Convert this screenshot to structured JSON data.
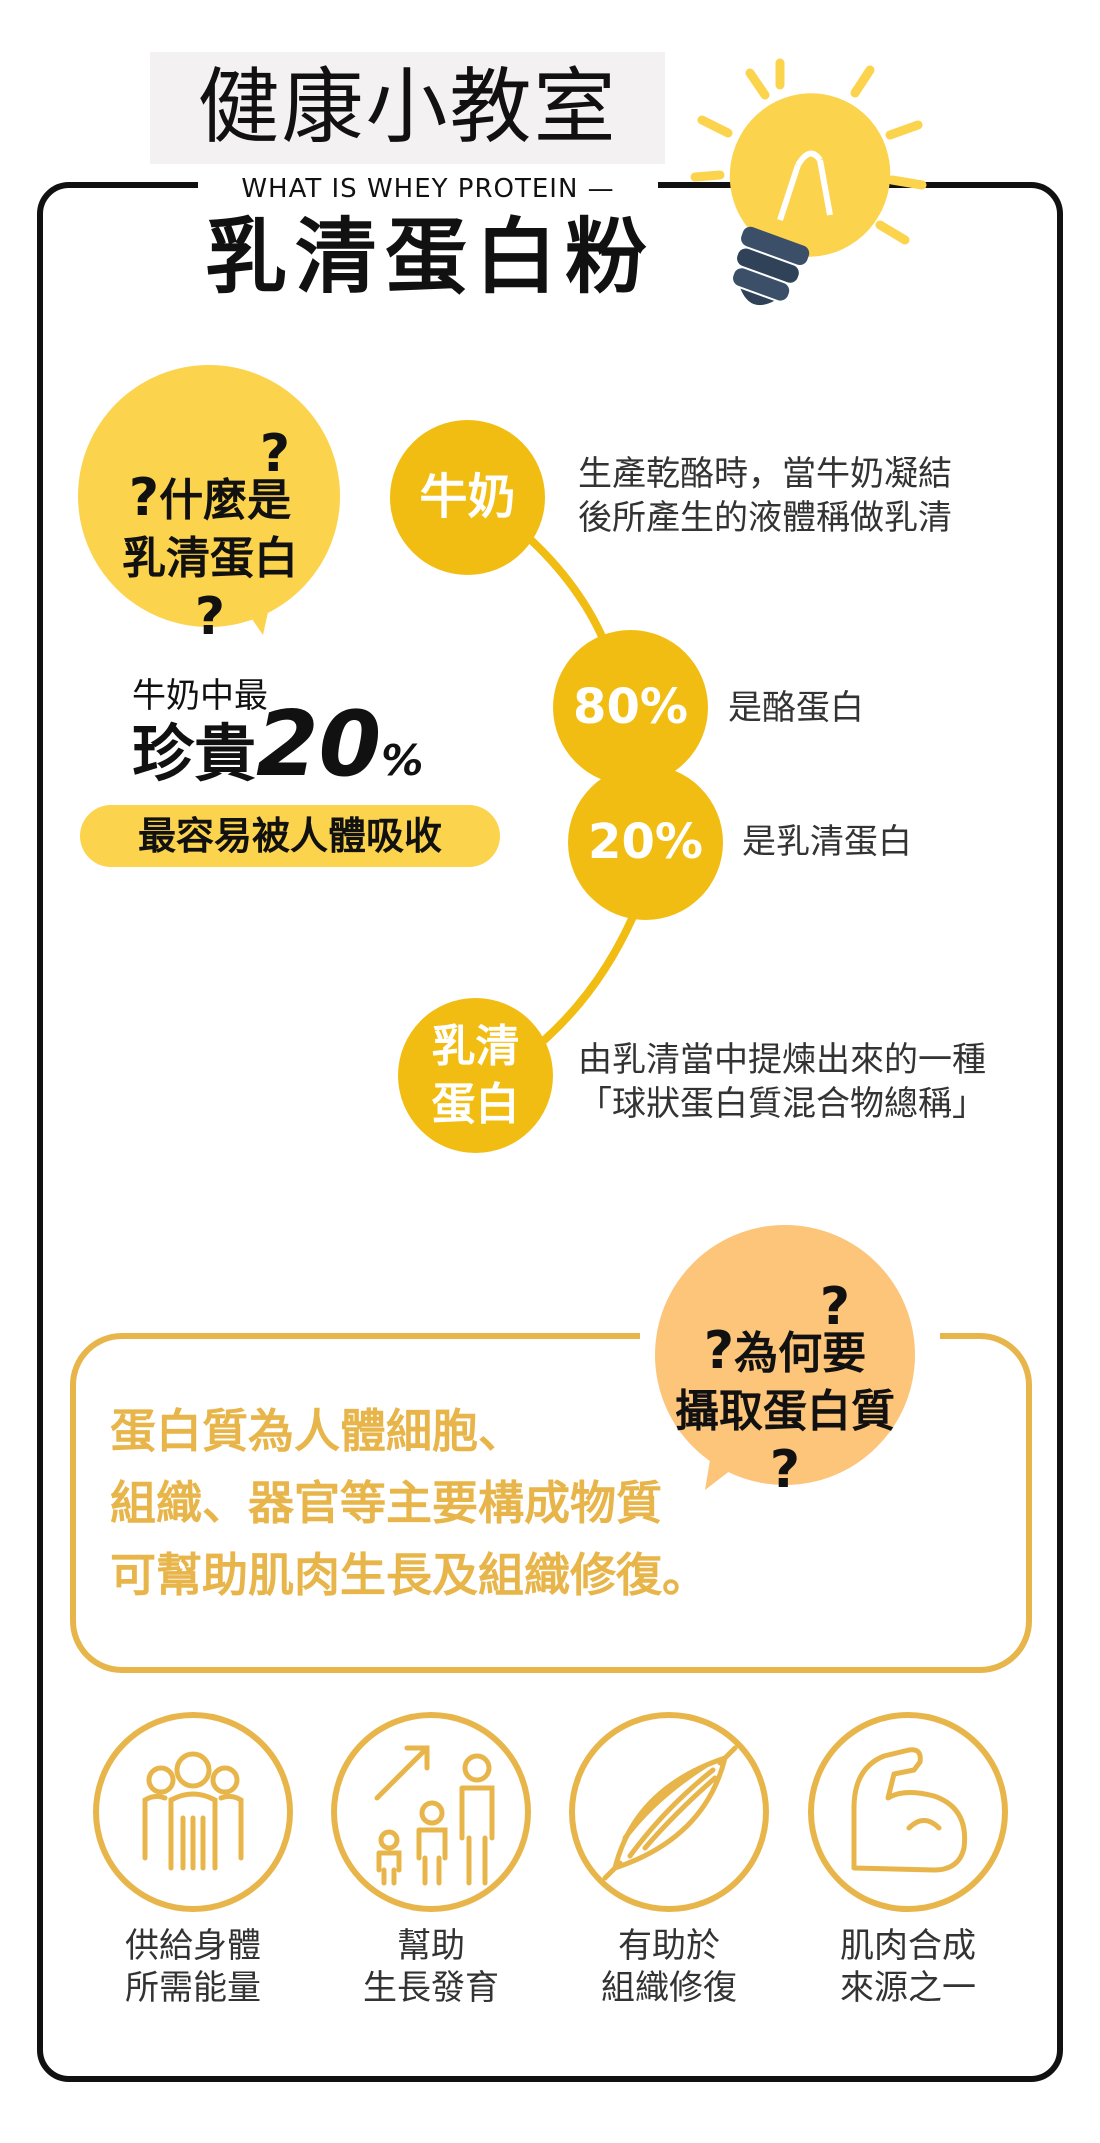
{
  "header": {
    "title": "健康小教室",
    "subtitle": "WHAT IS WHEY PROTEIN",
    "main_title": "乳清蛋白粉"
  },
  "question1": {
    "line1": "什麼是",
    "line2": "乳清蛋白",
    "mark": "?"
  },
  "highlight": {
    "top": "牛奶中最",
    "precious": "珍貴",
    "number": "20",
    "percent": "%",
    "pill": "最容易被人體吸收"
  },
  "nodes": {
    "milk": {
      "label": "牛奶",
      "desc_line1": "生產乾酪時，當牛奶凝結",
      "desc_line2": "後所產生的液體稱做乳清"
    },
    "casein": {
      "label": "80%",
      "desc": "是酪蛋白"
    },
    "whey_pct": {
      "label": "20%",
      "desc": "是乳清蛋白"
    },
    "whey": {
      "label_line1": "乳清",
      "label_line2": "蛋白",
      "desc_line1": "由乳清當中提煉出來的一種",
      "desc_line2": "「球狀蛋白質混合物總稱」"
    }
  },
  "question2": {
    "line1": "為何要",
    "line2": "攝取蛋白質",
    "mark": "?"
  },
  "why_body": {
    "line1": "蛋白質為人體細胞、",
    "line2": "組織、器官等主要構成物質",
    "line3": "可幫助肌肉生長及組織修復。"
  },
  "benefits": [
    {
      "icon": "people-group-icon",
      "line1": "供給身體",
      "line2": "所需能量"
    },
    {
      "icon": "growth-family-icon",
      "line1": "幫助",
      "line2": "生長發育"
    },
    {
      "icon": "muscle-fiber-icon",
      "line1": "有助於",
      "line2": "組織修復"
    },
    {
      "icon": "flexed-arm-icon",
      "line1": "肌肉合成",
      "line2": "來源之一"
    }
  ],
  "colors": {
    "accent": "#f2bd12",
    "light_yellow": "#fcd34d",
    "orange": "#fcc57a",
    "gold_line": "#e8b54a",
    "dark": "#111111"
  }
}
